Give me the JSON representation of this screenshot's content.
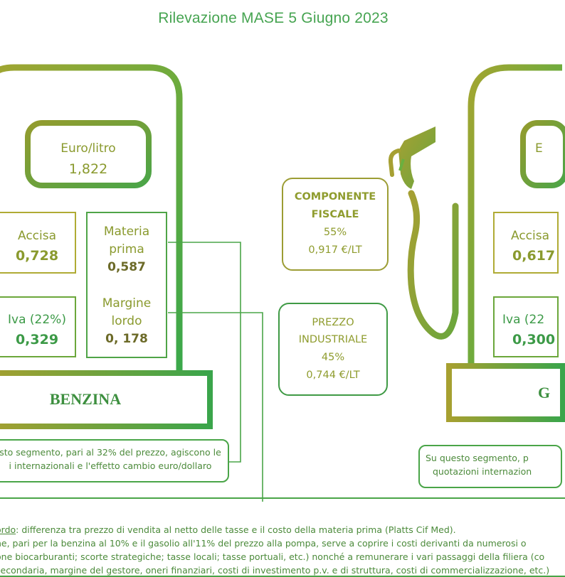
{
  "title": "Rilevazione MASE 5 Giugno 2023",
  "benzina": {
    "euro_litro_label": "Euro/litro",
    "euro_litro_value": "1,822",
    "accisa_label": "Accisa",
    "accisa_value": "0,728",
    "materia_prima_label_1": "Materia",
    "materia_prima_label_2": "prima",
    "materia_prima_value": "0,587",
    "iva_label": "Iva (22%)",
    "iva_value": "0,329",
    "margine_label_1": "Margine",
    "margine_label_2": "lordo",
    "margine_value": "0, 178",
    "name": "BENZINA",
    "note_line1": "sto segmento, pari al 32% del prezzo, agiscono le",
    "note_line2": "i internazionali e l'effetto cambio euro/dollaro"
  },
  "gasolio": {
    "euro_litro_label": "E",
    "accisa_label": "Accisa",
    "accisa_value": "0,617",
    "iva_label": "Iva (22",
    "iva_value": "0,300",
    "name": "G",
    "note_line1": "Su questo segmento, p",
    "note_line2": "quotazioni internazion"
  },
  "componente_fiscale": {
    "label_1": "COMPONENTE",
    "label_2": "FISCALE",
    "percent": "55%",
    "value": "0,917 €/LT"
  },
  "prezzo_industriale": {
    "label_1": "PREZZO",
    "label_2": "INDUSTRIALE",
    "percent": "45%",
    "value": "0,744 €/LT"
  },
  "footer": {
    "term": "ordo",
    "line1": ": differenza tra prezzo di vendita al netto delle tasse e il costo della materia prima (Platts Cif Med).",
    "line2": "ne, pari per la benzina al 10% e il gasolio all'11% del prezzo alla pompa, serve a coprire i costi derivanti da numerosi o",
    "line3": "one biocarburanti; scorte strategiche; tasse locali; tasse portuali, etc.) nonché a remunerare i vari passaggi della filiera (co",
    "line4": "secondaria, margine del gestore, oneri finanziari, costi di investimento p.v. e di struttura, costi di commercializzazione, etc.)"
  },
  "colors": {
    "olive": "#8f9c2e",
    "green": "#3da54c",
    "dark_green": "#3d8f3f",
    "text_green": "#3c9a47"
  }
}
